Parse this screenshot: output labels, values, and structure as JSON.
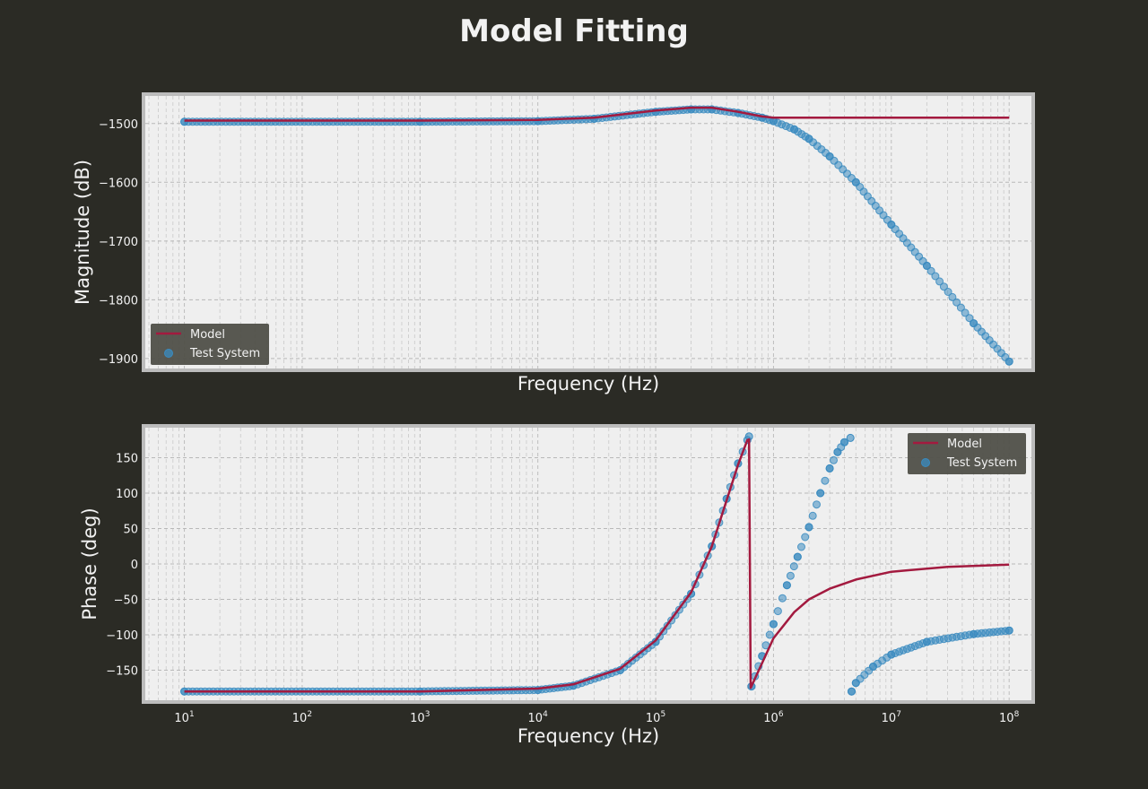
{
  "title": "Model Fitting",
  "colors": {
    "background": "#2b2b25",
    "plot_bg": "#efefef",
    "frame": "#bcbcbc",
    "grid": "#b8b8b8",
    "model": "#a31a3f",
    "test_system": "#3a8bc0",
    "legend_bg": "#4f4f48"
  },
  "chart_data": [
    {
      "type": "line",
      "xscale": "log",
      "xlabel": "Frequency (Hz)",
      "ylabel": "Magnitude (dB)",
      "xlim": [
        4.5,
        160000000
      ],
      "ylim": [
        -1920,
        -1450
      ],
      "yticks": [
        -1500,
        -1600,
        -1700,
        -1800,
        -1900
      ],
      "grid": true,
      "legend": {
        "placement": "lower-left",
        "entries": [
          "Model",
          "Test System"
        ]
      },
      "series": [
        {
          "name": "Model",
          "style": "line",
          "x": [
            10,
            1000,
            10000,
            30000,
            100000,
            200000,
            300000,
            500000,
            800000,
            1000000,
            3000000,
            100000000
          ],
          "y": [
            -1495,
            -1495,
            -1494,
            -1490,
            -1478,
            -1473,
            -1473,
            -1480,
            -1488,
            -1490,
            -1490,
            -1490
          ]
        },
        {
          "name": "Test System",
          "style": "scatter",
          "x": [
            10,
            1000,
            10000,
            30000,
            100000,
            200000,
            300000,
            500000,
            800000,
            1000000,
            1500000,
            2000000,
            3000000,
            5000000,
            10000000,
            20000000,
            50000000,
            100000000
          ],
          "y": [
            -1497,
            -1497,
            -1496,
            -1492,
            -1480,
            -1476,
            -1476,
            -1482,
            -1490,
            -1496,
            -1510,
            -1526,
            -1556,
            -1600,
            -1672,
            -1742,
            -1840,
            -1905
          ]
        }
      ]
    },
    {
      "type": "line",
      "xscale": "log",
      "xlabel": "Frequency (Hz)",
      "ylabel": "Phase (deg)",
      "xlim": [
        4.5,
        160000000
      ],
      "ylim": [
        -195,
        195
      ],
      "yticks": [
        150,
        100,
        50,
        0,
        -50,
        -100,
        -150
      ],
      "xticks": [
        "10^1",
        "10^2",
        "10^3",
        "10^4",
        "10^5",
        "10^6",
        "10^7",
        "10^8"
      ],
      "grid": true,
      "legend": {
        "placement": "upper-right",
        "entries": [
          "Model",
          "Test System"
        ]
      },
      "series": [
        {
          "name": "Model",
          "style": "line",
          "x": [
            10,
            1000,
            10000,
            20000,
            50000,
            100000,
            200000,
            300000,
            400000,
            500000,
            600000,
            620000,
            640000,
            800000,
            1000000,
            1500000,
            2000000,
            3000000,
            5000000,
            10000000,
            30000000,
            100000000
          ],
          "y": [
            -180,
            -180,
            -176,
            -170,
            -148,
            -108,
            -40,
            25,
            90,
            140,
            175,
            176,
            -175,
            -140,
            -105,
            -68,
            -50,
            -35,
            -22,
            -11,
            -4,
            -1
          ]
        },
        {
          "name": "Test System",
          "style": "scatter",
          "x": [
            10,
            1000,
            10000,
            20000,
            50000,
            100000,
            200000,
            300000,
            400000,
            500000,
            600000,
            620000,
            650000,
            800000,
            1000000,
            1300000,
            1600000,
            2000000,
            2500000,
            3000000,
            3500000,
            4000000,
            4500000,
            4600000,
            5000000,
            7000000,
            10000000,
            20000000,
            50000000,
            100000000
          ],
          "y": [
            -180,
            -180,
            -178,
            -172,
            -150,
            -110,
            -42,
            25,
            92,
            142,
            175,
            180,
            -173,
            -130,
            -85,
            -30,
            10,
            52,
            100,
            135,
            158,
            172,
            178,
            -180,
            -168,
            -145,
            -128,
            -110,
            -99,
            -94
          ]
        }
      ]
    }
  ]
}
